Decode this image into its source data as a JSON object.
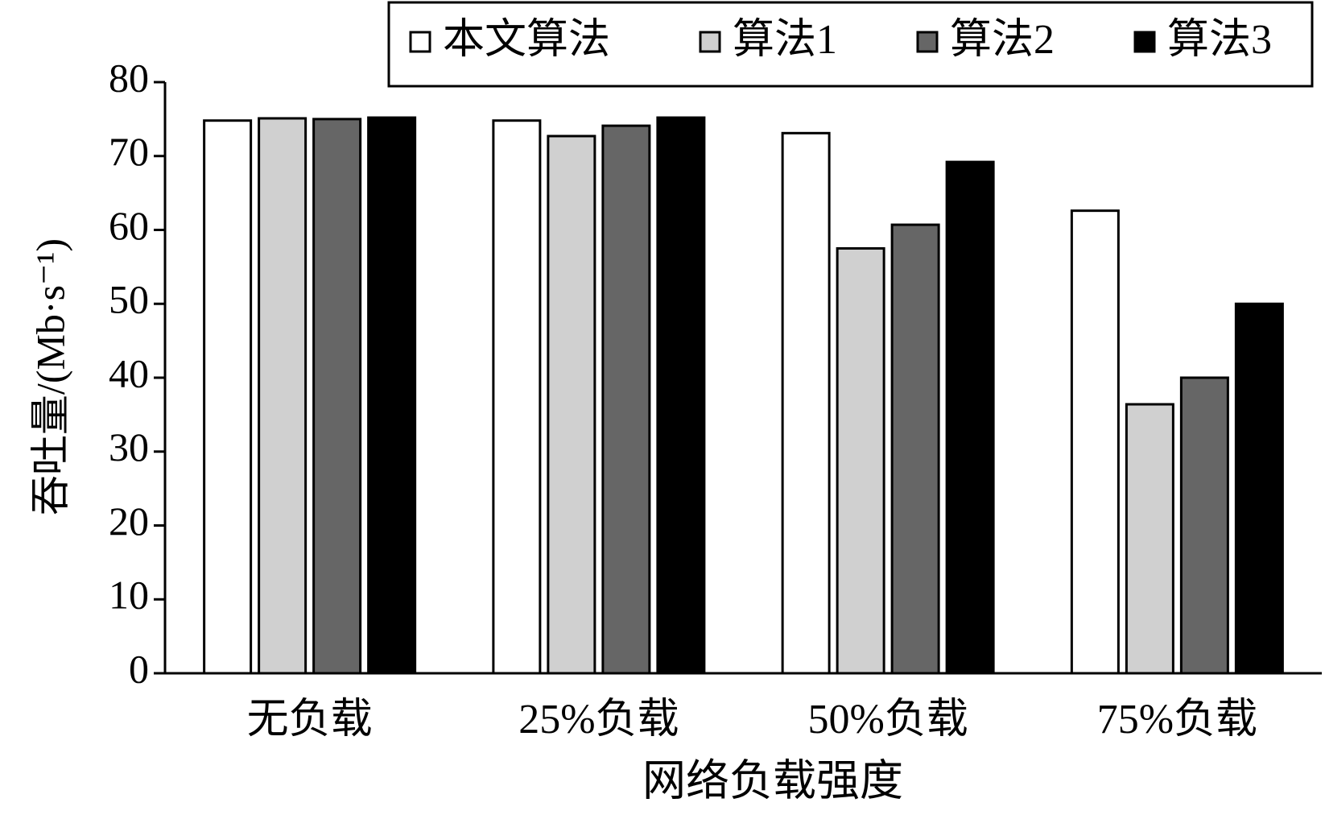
{
  "chart_data": {
    "type": "bar",
    "x_label": "网络负载强度",
    "y_label": "吞吐量/(Mb·s⁻¹)",
    "categories": [
      "无负载",
      "25%负载",
      "50%负载",
      "75%负载"
    ],
    "series": [
      {
        "name": "本文算法",
        "color": "#ffffff",
        "values": [
          74.8,
          74.8,
          73.1,
          62.6
        ]
      },
      {
        "name": "算法1",
        "color": "#d0d0d0",
        "values": [
          75.1,
          72.7,
          57.5,
          36.4
        ]
      },
      {
        "name": "算法2",
        "color": "#666666",
        "values": [
          75.0,
          74.1,
          60.7,
          40.0
        ]
      },
      {
        "name": "算法3",
        "color": "#000000",
        "values": [
          75.2,
          75.2,
          69.2,
          50.0
        ]
      }
    ],
    "ylim": [
      0,
      80
    ],
    "yticks": [
      0,
      10,
      20,
      30,
      40,
      50,
      60,
      70,
      80
    ],
    "grid": false,
    "legend_position": "top"
  }
}
